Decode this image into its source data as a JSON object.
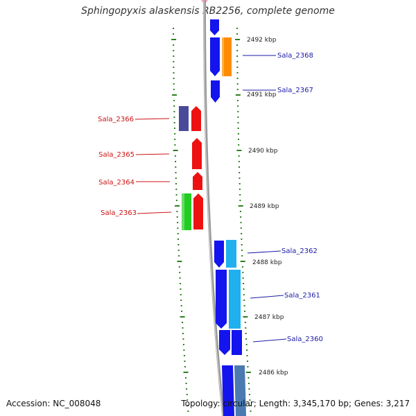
{
  "title": "Sphingopyxis alaskensis RB2256, complete genome",
  "footer": {
    "accession": "Accession: NC_008048",
    "summary": "Topology: circular; Length: 3,345,170 bp; Genes: 3,217"
  },
  "colors": {
    "backbone": "#9a9a9a",
    "ticks": "#2e7d1e",
    "label_forward": "#1a1aa8",
    "label_reverse": "#cc1111"
  },
  "ruler": [
    "2492 kbp",
    "2491 kbp",
    "2490 kbp",
    "2489 kbp",
    "2488 kbp",
    "2487 kbp",
    "2486 kbp"
  ],
  "genes": [
    {
      "label": "Sala_2368",
      "side": "right"
    },
    {
      "label": "Sala_2367",
      "side": "right"
    },
    {
      "label": "Sala_2366",
      "side": "left"
    },
    {
      "label": "Sala_2365",
      "side": "left"
    },
    {
      "label": "Sala_2364",
      "side": "left"
    },
    {
      "label": "Sala_2363",
      "side": "left"
    },
    {
      "label": "Sala_2362",
      "side": "right"
    },
    {
      "label": "Sala_2361",
      "side": "right"
    },
    {
      "label": "Sala_2360",
      "side": "right"
    }
  ]
}
